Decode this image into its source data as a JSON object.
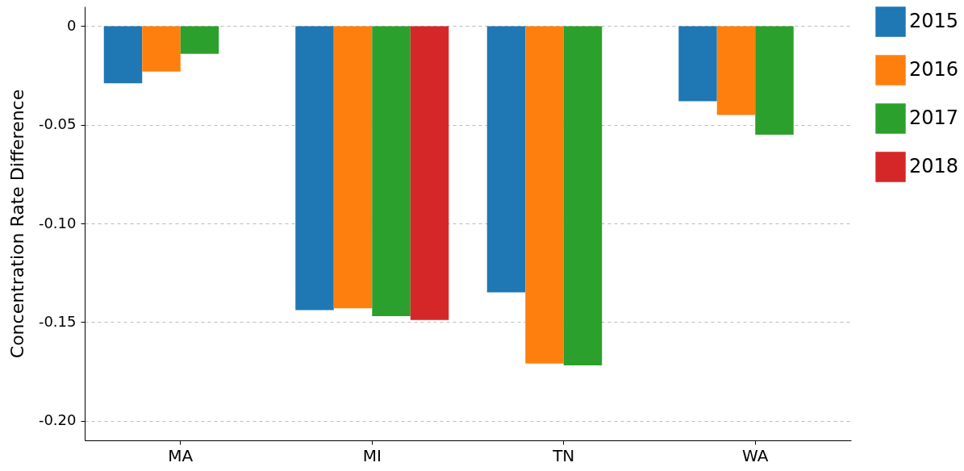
{
  "chart_data": {
    "type": "bar",
    "ylabel": "Concentration Rate Difference",
    "categories": [
      "MA",
      "MI",
      "TN",
      "WA"
    ],
    "series": [
      {
        "name": "2015",
        "color": "#1f77b4",
        "values": [
          -0.029,
          -0.144,
          -0.135,
          -0.038
        ]
      },
      {
        "name": "2016",
        "color": "#ff7f0e",
        "values": [
          -0.023,
          -0.143,
          -0.171,
          -0.045
        ]
      },
      {
        "name": "2017",
        "color": "#2ca02c",
        "values": [
          -0.014,
          -0.147,
          -0.172,
          -0.055
        ]
      },
      {
        "name": "2018",
        "color": "#d62728",
        "values": [
          null,
          -0.149,
          null,
          null
        ]
      }
    ],
    "ylim": [
      -0.21,
      0.01
    ],
    "yticks": [
      0,
      -0.05,
      {
        "value": -0.1,
        "label": "-0.10"
      },
      {
        "value": -0.15,
        "label": "-0.15"
      },
      {
        "value": -0.2,
        "label": "-0.20"
      }
    ],
    "grid": "y",
    "legend": "top right"
  }
}
